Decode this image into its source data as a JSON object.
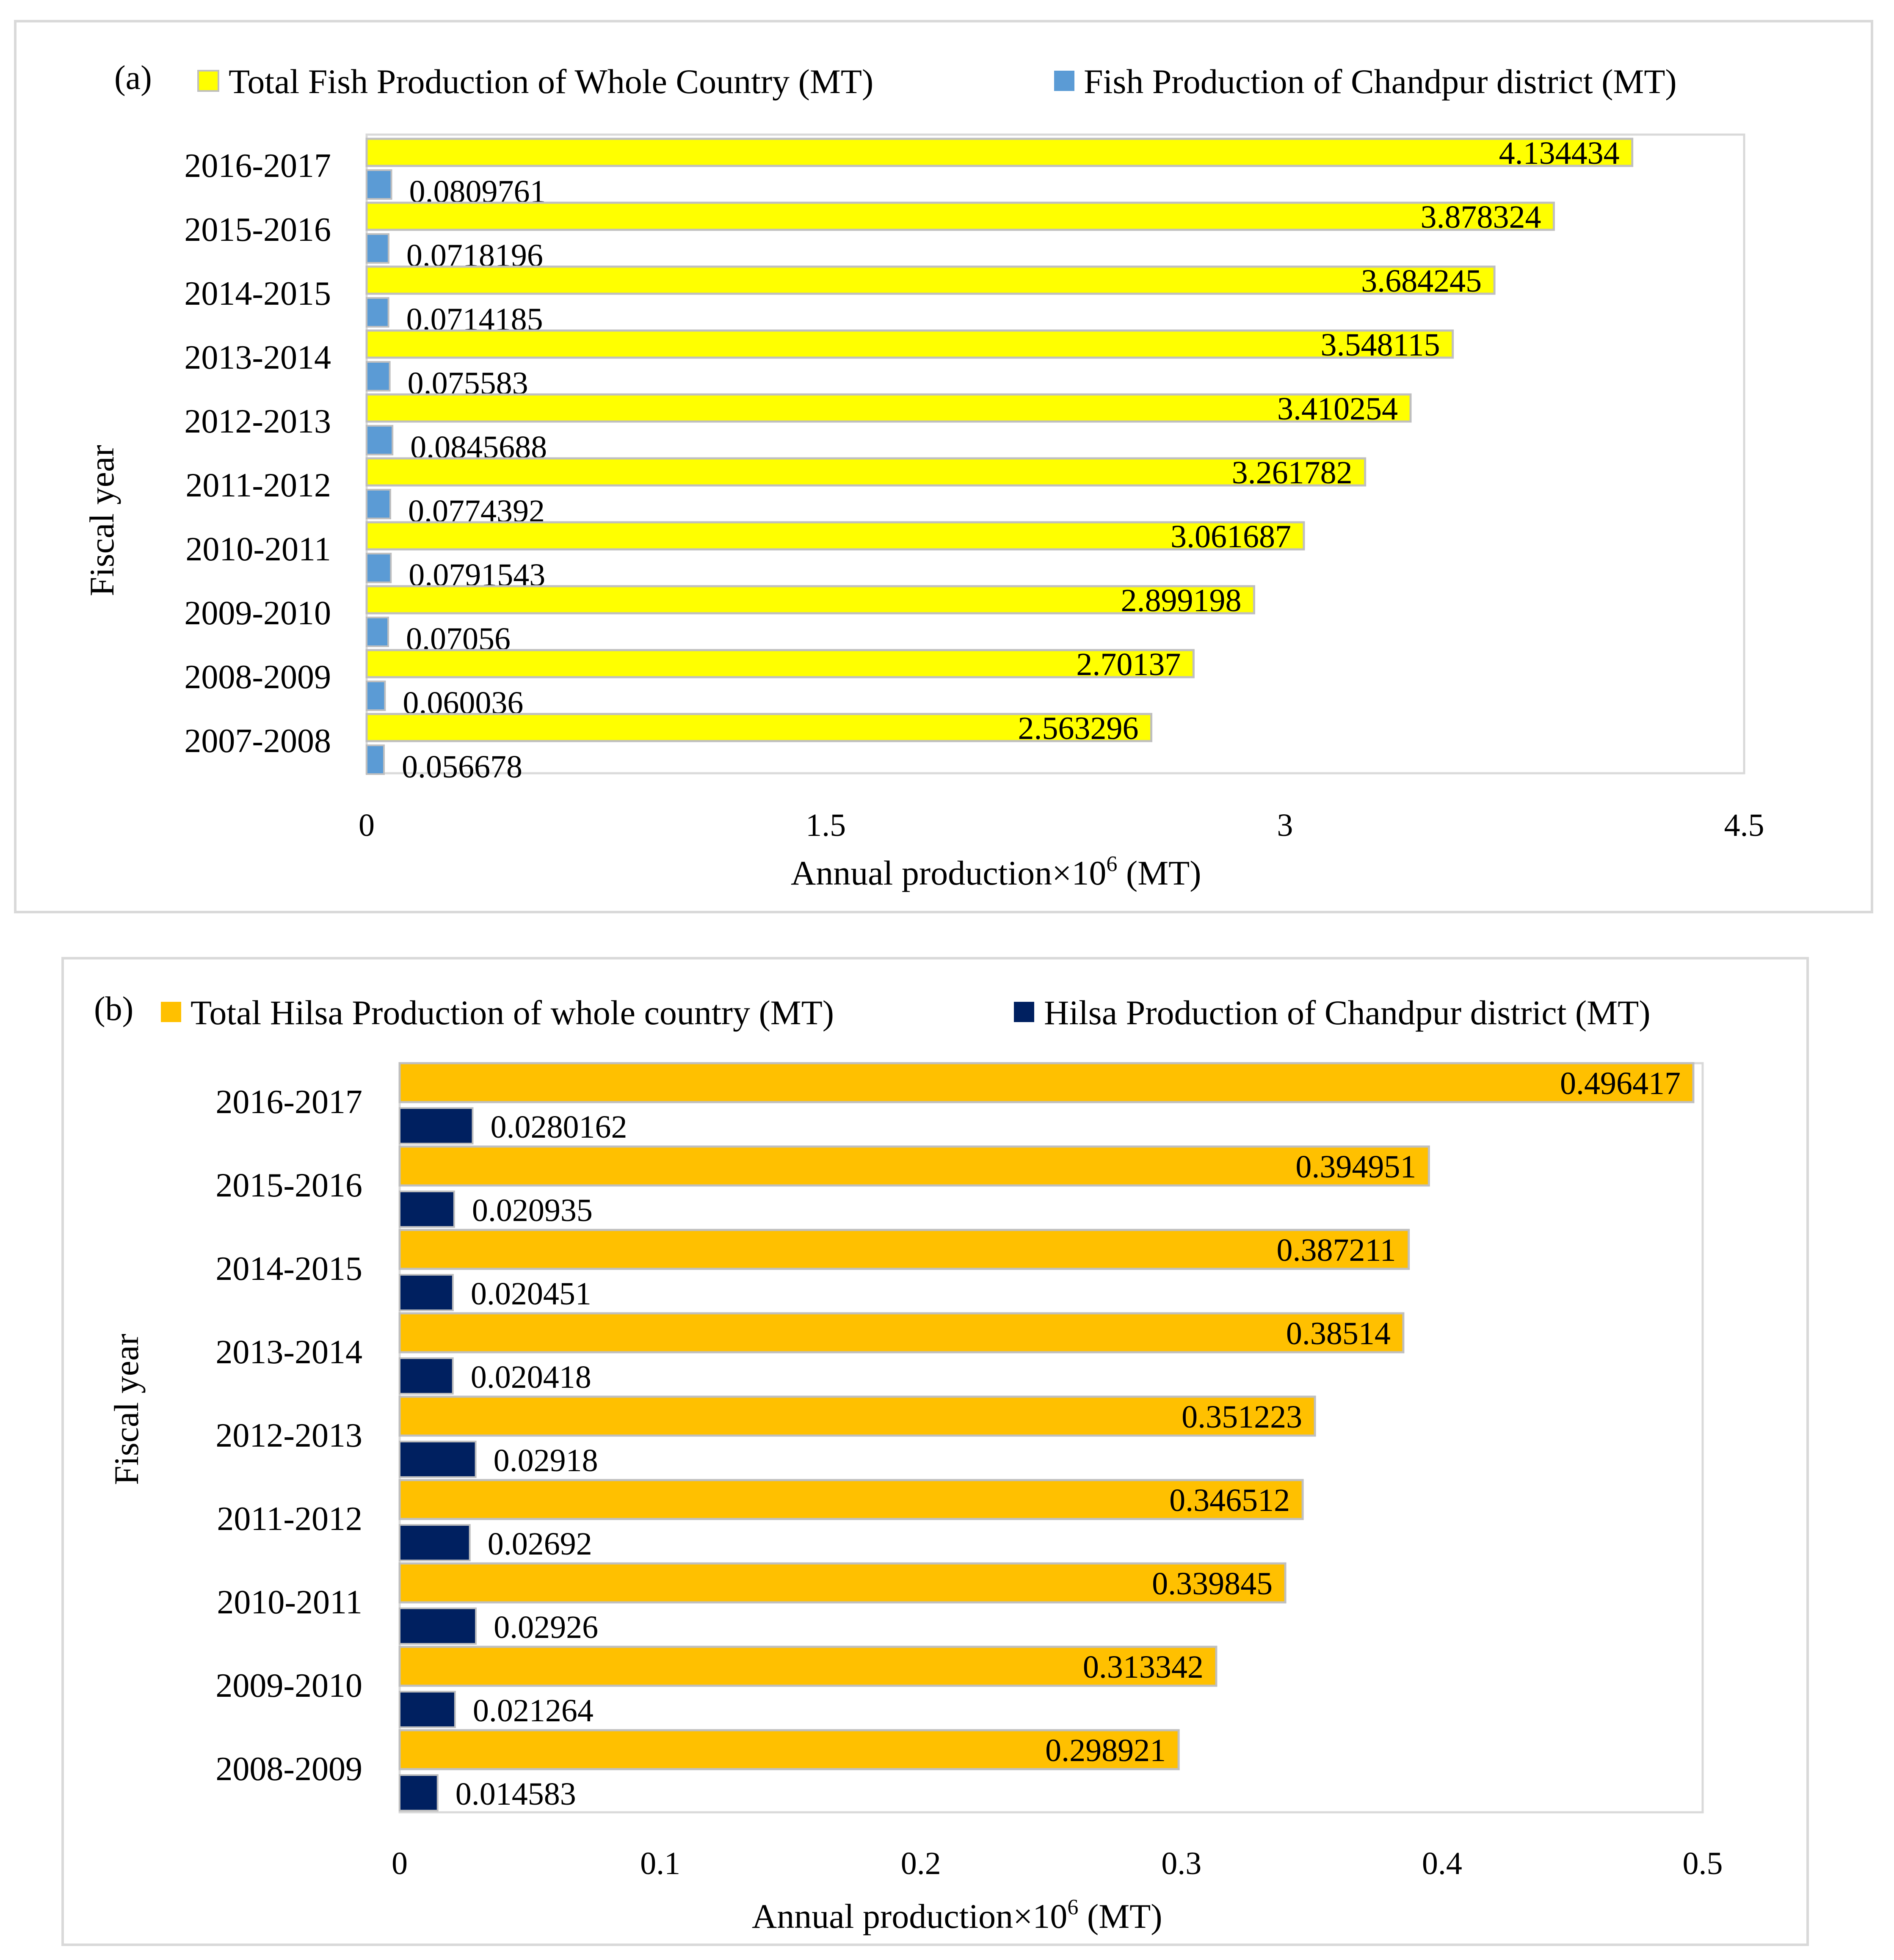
{
  "colors": {
    "country_fish": "#ffff00",
    "district_fish": "#5b9bd5",
    "country_hilsa": "#ffc000",
    "district_hilsa": "#002060",
    "bar_border": "#bfbfbf",
    "panel_border": "#d9d9d9"
  },
  "chart_data": [
    {
      "type": "bar",
      "orientation": "horizontal",
      "panel_label": "(a)",
      "xlabel_main": "Annual production×10",
      "xlabel_sup": "6",
      "xlabel_suffix": " (MT)",
      "ylabel": "Fiscal year",
      "xlim": [
        0,
        4.5
      ],
      "xticks": [
        "0",
        "1.5",
        "3",
        "4.5"
      ],
      "legend_position": "top",
      "categories": [
        "2016-2017",
        "2015-2016",
        "2014-2015",
        "2013-2014",
        "2012-2013",
        "2011-2012",
        "2010-2011",
        "2009-2010",
        "2008-2009",
        "2007-2008"
      ],
      "series": [
        {
          "name": "Total Fish Production of Whole Country (MT)",
          "color_key": "country_fish",
          "values": [
            4.134434,
            3.878324,
            3.684245,
            3.548115,
            3.410254,
            3.261782,
            3.061687,
            2.899198,
            2.70137,
            2.563296
          ],
          "labels": [
            "4.134434",
            "3.878324",
            "3.684245",
            "3.548115",
            "3.410254",
            "3.261782",
            "3.061687",
            "2.899198",
            "2.70137",
            "2.563296"
          ]
        },
        {
          "name": "Fish Production of Chandpur district (MT)",
          "color_key": "district_fish",
          "values": [
            0.0809761,
            0.0718196,
            0.0714185,
            0.075583,
            0.0845688,
            0.0774392,
            0.0791543,
            0.07056,
            0.060036,
            0.056678
          ],
          "labels": [
            "0.0809761",
            "0.0718196",
            "0.0714185",
            "0.075583",
            "0.0845688",
            "0.0774392",
            "0.0791543",
            "0.07056",
            "0.060036",
            "0.056678"
          ]
        }
      ]
    },
    {
      "type": "bar",
      "orientation": "horizontal",
      "panel_label": "(b)",
      "xlabel_main": "Annual production×10",
      "xlabel_sup": "6",
      "xlabel_suffix": " (MT)",
      "ylabel": "Fiscal year",
      "xlim": [
        0,
        0.5
      ],
      "xticks": [
        "0",
        "0.1",
        "0.2",
        "0.3",
        "0.4",
        "0.5"
      ],
      "legend_position": "top",
      "categories": [
        "2016-2017",
        "2015-2016",
        "2014-2015",
        "2013-2014",
        "2012-2013",
        "2011-2012",
        "2010-2011",
        "2009-2010",
        "2008-2009"
      ],
      "series": [
        {
          "name": "Total Hilsa  Production of whole country (MT)",
          "color_key": "country_hilsa",
          "values": [
            0.496417,
            0.394951,
            0.387211,
            0.38514,
            0.351223,
            0.346512,
            0.339845,
            0.313342,
            0.298921
          ],
          "labels": [
            "0.496417",
            "0.394951",
            "0.387211",
            "0.38514",
            "0.351223",
            "0.346512",
            "0.339845",
            "0.313342",
            "0.298921"
          ]
        },
        {
          "name": "Hilsa Production of Chandpur district (MT)",
          "color_key": "district_hilsa",
          "values": [
            0.0280162,
            0.020935,
            0.020451,
            0.020418,
            0.02918,
            0.02692,
            0.02926,
            0.021264,
            0.014583
          ],
          "labels": [
            "0.0280162",
            "0.020935",
            "0.020451",
            "0.020418",
            "0.02918",
            "0.02692",
            "0.02926",
            "0.021264",
            "0.014583"
          ]
        }
      ]
    }
  ]
}
